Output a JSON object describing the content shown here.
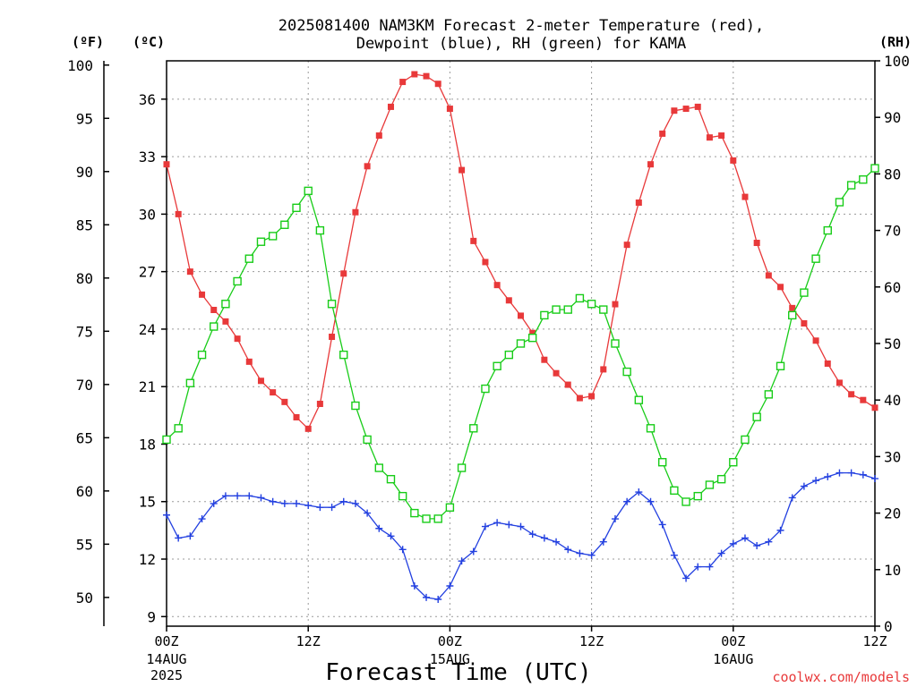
{
  "title": {
    "line1": "2025081400 NAM3KM Forecast 2-meter Temperature (red),",
    "line2": "Dewpoint (blue), RH (green) for KAMA"
  },
  "unit_labels": {
    "fahrenheit": "(ºF)",
    "celsius": "(ºC)",
    "rh": "(RH)"
  },
  "xlabel": "Forecast Time (UTC)",
  "credit": "coolwx.com/models",
  "chart_data": {
    "type": "line",
    "x_hours": [
      0,
      1,
      2,
      3,
      4,
      5,
      6,
      7,
      8,
      9,
      10,
      11,
      12,
      13,
      14,
      15,
      16,
      17,
      18,
      19,
      20,
      21,
      22,
      23,
      24,
      25,
      26,
      27,
      28,
      29,
      30,
      31,
      32,
      33,
      34,
      35,
      36,
      37,
      38,
      39,
      40,
      41,
      42,
      43,
      44,
      45,
      46,
      47,
      48,
      49,
      50,
      51,
      52,
      53,
      54,
      55,
      56,
      57,
      58,
      59,
      60
    ],
    "x_ticks": [
      {
        "hour": 0,
        "label": "00Z",
        "sub1": "14AUG",
        "sub2": "2025"
      },
      {
        "hour": 12,
        "label": "12Z",
        "sub1": "",
        "sub2": ""
      },
      {
        "hour": 24,
        "label": "00Z",
        "sub1": "15AUG",
        "sub2": ""
      },
      {
        "hour": 36,
        "label": "12Z",
        "sub1": "",
        "sub2": ""
      },
      {
        "hour": 48,
        "label": "00Z",
        "sub1": "16AUG",
        "sub2": ""
      },
      {
        "hour": 60,
        "label": "12Z",
        "sub1": "",
        "sub2": ""
      }
    ],
    "xlim": [
      0,
      60
    ],
    "left_axis_celsius": {
      "ylim": [
        8.5,
        38.0
      ],
      "ticks": [
        9,
        12,
        15,
        18,
        21,
        24,
        27,
        30,
        33,
        36
      ]
    },
    "left_axis_fahrenheit": {
      "ticks": [
        50,
        55,
        60,
        65,
        70,
        75,
        80,
        85,
        90,
        95,
        100
      ]
    },
    "right_axis_rh": {
      "ylim": [
        0,
        100
      ],
      "ticks": [
        0,
        10,
        20,
        30,
        40,
        50,
        60,
        70,
        80,
        90,
        100
      ]
    },
    "grid": true,
    "series": [
      {
        "name": "Temperature (red)",
        "axis": "celsius",
        "color": "#e8393a",
        "marker": "filled-square",
        "values": [
          32.6,
          30.0,
          27.0,
          25.8,
          25.0,
          24.4,
          23.5,
          22.3,
          21.3,
          20.7,
          20.2,
          19.4,
          18.8,
          20.1,
          23.6,
          26.9,
          30.1,
          32.5,
          34.1,
          35.6,
          36.9,
          37.3,
          37.2,
          36.8,
          35.5,
          32.3,
          28.6,
          27.5,
          26.3,
          25.5,
          24.7,
          23.8,
          22.4,
          21.7,
          21.1,
          20.4,
          20.5,
          21.9,
          25.3,
          28.4,
          30.6,
          32.6,
          34.2,
          35.4,
          35.5,
          35.6,
          34.0,
          34.1,
          32.8,
          30.9,
          28.5,
          26.8,
          26.2,
          25.1,
          24.3,
          23.4,
          22.2,
          21.2,
          20.6,
          20.3,
          19.9
        ]
      },
      {
        "name": "Dewpoint (blue)",
        "axis": "celsius",
        "color": "#2340e0",
        "marker": "plus",
        "values": [
          14.3,
          13.1,
          13.2,
          14.1,
          14.9,
          15.3,
          15.3,
          15.3,
          15.2,
          15.0,
          14.9,
          14.9,
          14.8,
          14.7,
          14.7,
          15.0,
          14.9,
          14.4,
          13.6,
          13.2,
          12.5,
          10.6,
          10.0,
          9.9,
          10.6,
          11.9,
          12.4,
          13.7,
          13.9,
          13.8,
          13.7,
          13.3,
          13.1,
          12.9,
          12.5,
          12.3,
          12.2,
          12.9,
          14.1,
          15.0,
          15.5,
          15.0,
          13.8,
          12.2,
          11.0,
          11.6,
          11.6,
          12.3,
          12.8,
          13.1,
          12.7,
          12.9,
          13.5,
          15.2,
          15.8,
          16.1,
          16.3,
          16.5,
          16.5,
          16.4,
          16.2
        ]
      },
      {
        "name": "RH (green)",
        "axis": "rh",
        "color": "#18cc18",
        "marker": "open-square",
        "values": [
          33,
          35,
          43,
          48,
          53,
          57,
          61,
          65,
          68,
          69,
          71,
          74,
          77,
          70,
          57,
          48,
          39,
          33,
          28,
          26,
          23,
          20,
          19,
          19,
          21,
          28,
          35,
          42,
          46,
          48,
          50,
          51,
          55,
          56,
          56,
          58,
          57,
          56,
          50,
          45,
          40,
          35,
          29,
          24,
          22,
          23,
          25,
          26,
          29,
          33,
          37,
          41,
          46,
          55,
          59,
          65,
          70,
          75,
          78,
          79,
          81
        ]
      }
    ]
  }
}
